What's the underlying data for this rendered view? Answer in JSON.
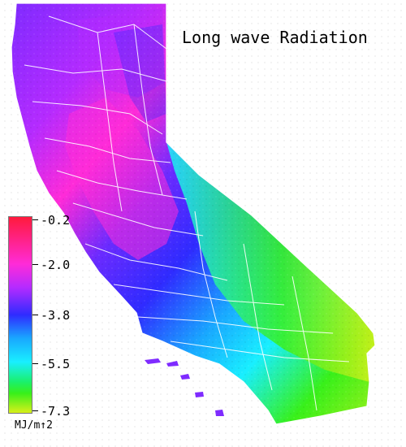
{
  "title": "Long wave Radiation",
  "legend": {
    "ticks": [
      "-0.2",
      "-2.0",
      "-3.8",
      "-5.5",
      "-7.3"
    ],
    "unit": "MJ/m↑2",
    "colors": [
      "#ff1a3c",
      "#ff2bd8",
      "#b42bff",
      "#2f2bff",
      "#19a8ff",
      "#19efff",
      "#1af06e",
      "#38f01a",
      "#d8f01a"
    ]
  },
  "map": {
    "region": "California",
    "colors": {
      "high": "#ff2bd8",
      "mid_high": "#b42bff",
      "mid": "#2f2bff",
      "mid_low": "#19efff",
      "low": "#38f01a",
      "lowest": "#d8f01a",
      "county_lines": "#ffffff"
    }
  }
}
